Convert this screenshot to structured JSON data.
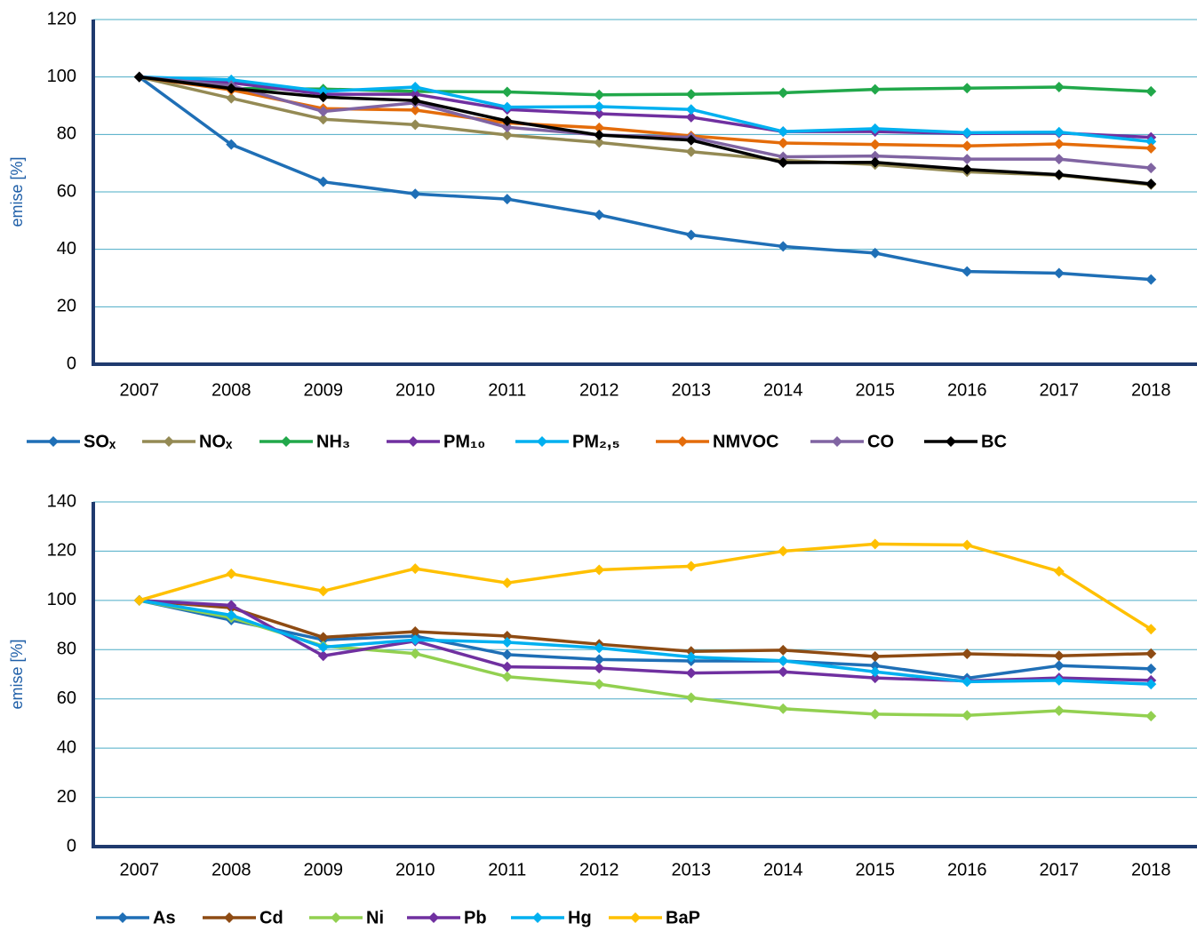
{
  "chart_data": [
    {
      "type": "line",
      "y_label": "emise [%]",
      "categories": [
        "2007",
        "2008",
        "2009",
        "2010",
        "2011",
        "2012",
        "2013",
        "2014",
        "2015",
        "2016",
        "2017",
        "2018"
      ],
      "ylim": [
        0,
        120
      ],
      "yticks": [
        0,
        20,
        40,
        60,
        80,
        100,
        120
      ],
      "grid": true,
      "legend": "bottom",
      "series": [
        {
          "name": "SOₓ",
          "color": "#1f6fb6",
          "values": [
            100,
            76.5,
            63.5,
            59.3,
            57.5,
            52,
            45,
            41,
            38.7,
            32.3,
            31.7,
            29.5
          ]
        },
        {
          "name": "NOₓ",
          "color": "#948a54",
          "values": [
            100,
            92.6,
            85.3,
            83.4,
            79.8,
            77.2,
            74,
            71,
            69.5,
            67,
            65.8,
            62.5
          ]
        },
        {
          "name": "NH₃",
          "color": "#21a84a",
          "values": [
            100,
            96,
            95.8,
            95,
            94.8,
            93.8,
            94,
            94.5,
            95.7,
            96.1,
            96.5,
            95
          ]
        },
        {
          "name": "PM₁₀",
          "color": "#7030a0",
          "values": [
            100,
            98,
            94,
            94,
            88.7,
            87.2,
            86,
            81,
            81,
            80.3,
            80.5,
            79
          ]
        },
        {
          "name": "PM₂,₅",
          "color": "#00b0f0",
          "values": [
            100,
            99,
            95,
            96.5,
            89.5,
            89.7,
            88.7,
            81,
            82,
            80.6,
            80.8,
            77.5
          ]
        },
        {
          "name": "NMVOC",
          "color": "#e46c0a",
          "values": [
            100,
            95.5,
            89,
            88.5,
            84,
            82.3,
            79.5,
            77,
            76.5,
            76,
            76.7,
            75.2
          ]
        },
        {
          "name": "CO",
          "color": "#8064a2",
          "values": [
            100,
            97,
            88,
            91,
            82.5,
            79.8,
            79,
            72.2,
            72.5,
            71.4,
            71.4,
            68.3
          ]
        },
        {
          "name": "BC",
          "color": "#000000",
          "values": [
            100,
            96,
            93,
            91.8,
            84.7,
            79.8,
            78,
            70.2,
            70.3,
            67.8,
            66,
            62.8
          ]
        }
      ]
    },
    {
      "type": "line",
      "y_label": "emise [%]",
      "categories": [
        "2007",
        "2008",
        "2009",
        "2010",
        "2011",
        "2012",
        "2013",
        "2014",
        "2015",
        "2016",
        "2017",
        "2018"
      ],
      "ylim": [
        0,
        140
      ],
      "yticks": [
        0,
        20,
        40,
        60,
        80,
        100,
        120,
        140
      ],
      "grid": true,
      "legend": "bottom",
      "series": [
        {
          "name": "As",
          "color": "#1f6fb6",
          "values": [
            100,
            92,
            84,
            85.5,
            78,
            76,
            75.4,
            75.4,
            73.5,
            68.4,
            73.5,
            72.2
          ]
        },
        {
          "name": "Cd",
          "color": "#8e4b13",
          "values": [
            100,
            97,
            85,
            87.3,
            85.5,
            82.2,
            79.3,
            79.8,
            77.2,
            78.3,
            77.5,
            78.4
          ]
        },
        {
          "name": "Ni",
          "color": "#92d050",
          "values": [
            100,
            93,
            81.5,
            78.4,
            69,
            66,
            60.5,
            56,
            53.8,
            53.3,
            55.2,
            53
          ]
        },
        {
          "name": "Pb",
          "color": "#7030a0",
          "values": [
            100,
            98,
            77.5,
            83.5,
            73,
            72.5,
            70.5,
            71,
            68.5,
            67.3,
            68.5,
            67.5
          ]
        },
        {
          "name": "Hg",
          "color": "#00b0f0",
          "values": [
            100,
            94,
            81,
            84,
            83,
            80.7,
            77,
            75.5,
            71,
            67,
            67.5,
            66
          ]
        },
        {
          "name": "BaP",
          "color": "#ffc000",
          "values": [
            100,
            110.8,
            103.8,
            112.9,
            107.1,
            112.4,
            113.9,
            120,
            122.9,
            122.5,
            111.8,
            88.3
          ]
        }
      ]
    }
  ]
}
